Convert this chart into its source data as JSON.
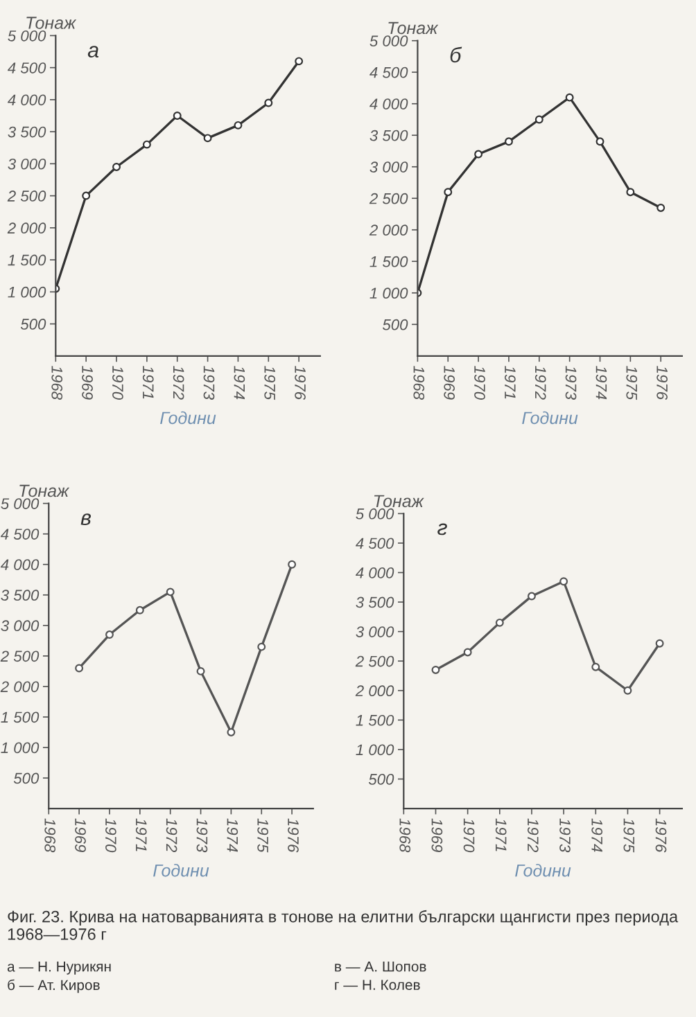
{
  "chart_data": [
    {
      "type": "line",
      "title": "а",
      "xlabel": "Години",
      "ylabel": "Тонаж",
      "categories": [
        "1968",
        "1969",
        "1970",
        "1971",
        "1972",
        "1973",
        "1974",
        "1975",
        "1976"
      ],
      "series": [
        {
          "color": "#333333",
          "values": [
            1050,
            2500,
            2950,
            3300,
            3750,
            3400,
            3600,
            3950,
            4600
          ]
        }
      ],
      "ylim": [
        0,
        5000
      ],
      "yticks": [
        {
          "value": 500,
          "label": "500"
        },
        {
          "value": 1000,
          "label": "1 000"
        },
        {
          "value": 1500,
          "label": "1 500"
        },
        {
          "value": 2000,
          "label": "2 000"
        },
        {
          "value": 2500,
          "label": "2 500"
        },
        {
          "value": 3000,
          "label": "3 000"
        },
        {
          "value": 3500,
          "label": "3 500"
        },
        {
          "value": 4000,
          "label": "4 000"
        },
        {
          "value": 4500,
          "label": "4 500"
        },
        {
          "value": 5000,
          "label": "5 000"
        }
      ],
      "marker": "circle",
      "line_style": "solid",
      "grid": false,
      "legend": false
    },
    {
      "type": "line",
      "title": "б",
      "xlabel": "Години",
      "ylabel": "Тонаж",
      "categories": [
        "1968",
        "1969",
        "1970",
        "1971",
        "1972",
        "1973",
        "1974",
        "1975",
        "1976"
      ],
      "series": [
        {
          "color": "#333333",
          "values": [
            1000,
            2600,
            3200,
            3400,
            3750,
            4100,
            3400,
            2600,
            2350
          ]
        }
      ],
      "ylim": [
        0,
        5000
      ],
      "yticks": [
        {
          "value": 500,
          "label": "500"
        },
        {
          "value": 1000,
          "label": "1 000"
        },
        {
          "value": 1500,
          "label": "1 500"
        },
        {
          "value": 2000,
          "label": "2 000"
        },
        {
          "value": 2500,
          "label": "2 500"
        },
        {
          "value": 3000,
          "label": "3 000"
        },
        {
          "value": 3500,
          "label": "3 500"
        },
        {
          "value": 4000,
          "label": "4 000"
        },
        {
          "value": 4500,
          "label": "4 500"
        },
        {
          "value": 5000,
          "label": "5 000"
        }
      ],
      "marker": "circle",
      "line_style": "solid",
      "grid": false,
      "legend": false
    },
    {
      "type": "line",
      "title": "в",
      "xlabel": "Години",
      "ylabel": "Тонаж",
      "categories": [
        "1968",
        "1969",
        "1970",
        "1971",
        "1972",
        "1973",
        "1974",
        "1975",
        "1976"
      ],
      "series": [
        {
          "color": "#555555",
          "values": [
            null,
            2300,
            2850,
            3250,
            3550,
            2250,
            1250,
            2650,
            4000
          ]
        }
      ],
      "ylim": [
        0,
        5000
      ],
      "yticks": [
        {
          "value": 500,
          "label": "500"
        },
        {
          "value": 1000,
          "label": "1 000"
        },
        {
          "value": 1500,
          "label": "1 500"
        },
        {
          "value": 2000,
          "label": "2 000"
        },
        {
          "value": 2500,
          "label": "2 500"
        },
        {
          "value": 3000,
          "label": "3 000"
        },
        {
          "value": 3500,
          "label": "3 500"
        },
        {
          "value": 4000,
          "label": "4 000"
        },
        {
          "value": 4500,
          "label": "4 500"
        },
        {
          "value": 5000,
          "label": "5 000"
        }
      ],
      "marker": "circle",
      "line_style": "solid",
      "grid": false,
      "legend": false
    },
    {
      "type": "line",
      "title": "г",
      "xlabel": "Години",
      "ylabel": "Тонаж",
      "categories": [
        "1968",
        "1969",
        "1970",
        "1971",
        "1972",
        "1973",
        "1974",
        "1975",
        "1976"
      ],
      "series": [
        {
          "color": "#555555",
          "values": [
            null,
            2350,
            2650,
            3150,
            3600,
            3850,
            2400,
            2000,
            2800
          ]
        }
      ],
      "ylim": [
        0,
        5000
      ],
      "yticks": [
        {
          "value": 500,
          "label": "500"
        },
        {
          "value": 1000,
          "label": "1 000"
        },
        {
          "value": 1500,
          "label": "1 500"
        },
        {
          "value": 2000,
          "label": "2 000"
        },
        {
          "value": 2500,
          "label": "2 500"
        },
        {
          "value": 3000,
          "label": "3 000"
        },
        {
          "value": 3500,
          "label": "3 500"
        },
        {
          "value": 4000,
          "label": "4 000"
        },
        {
          "value": 4500,
          "label": "4 500"
        },
        {
          "value": 5000,
          "label": "5 000"
        }
      ],
      "marker": "circle",
      "line_style": "solid",
      "grid": false,
      "legend": false,
      "annotations": [
        "Фиг. 23. Крива на натоварванията в тонове на елитни български щангисти през периода 1968—1976 г",
        "а — Н. Нурикян",
        "б — Ат. Киров",
        "в — А. Шопов",
        "г — Н. Колев"
      ]
    }
  ]
}
